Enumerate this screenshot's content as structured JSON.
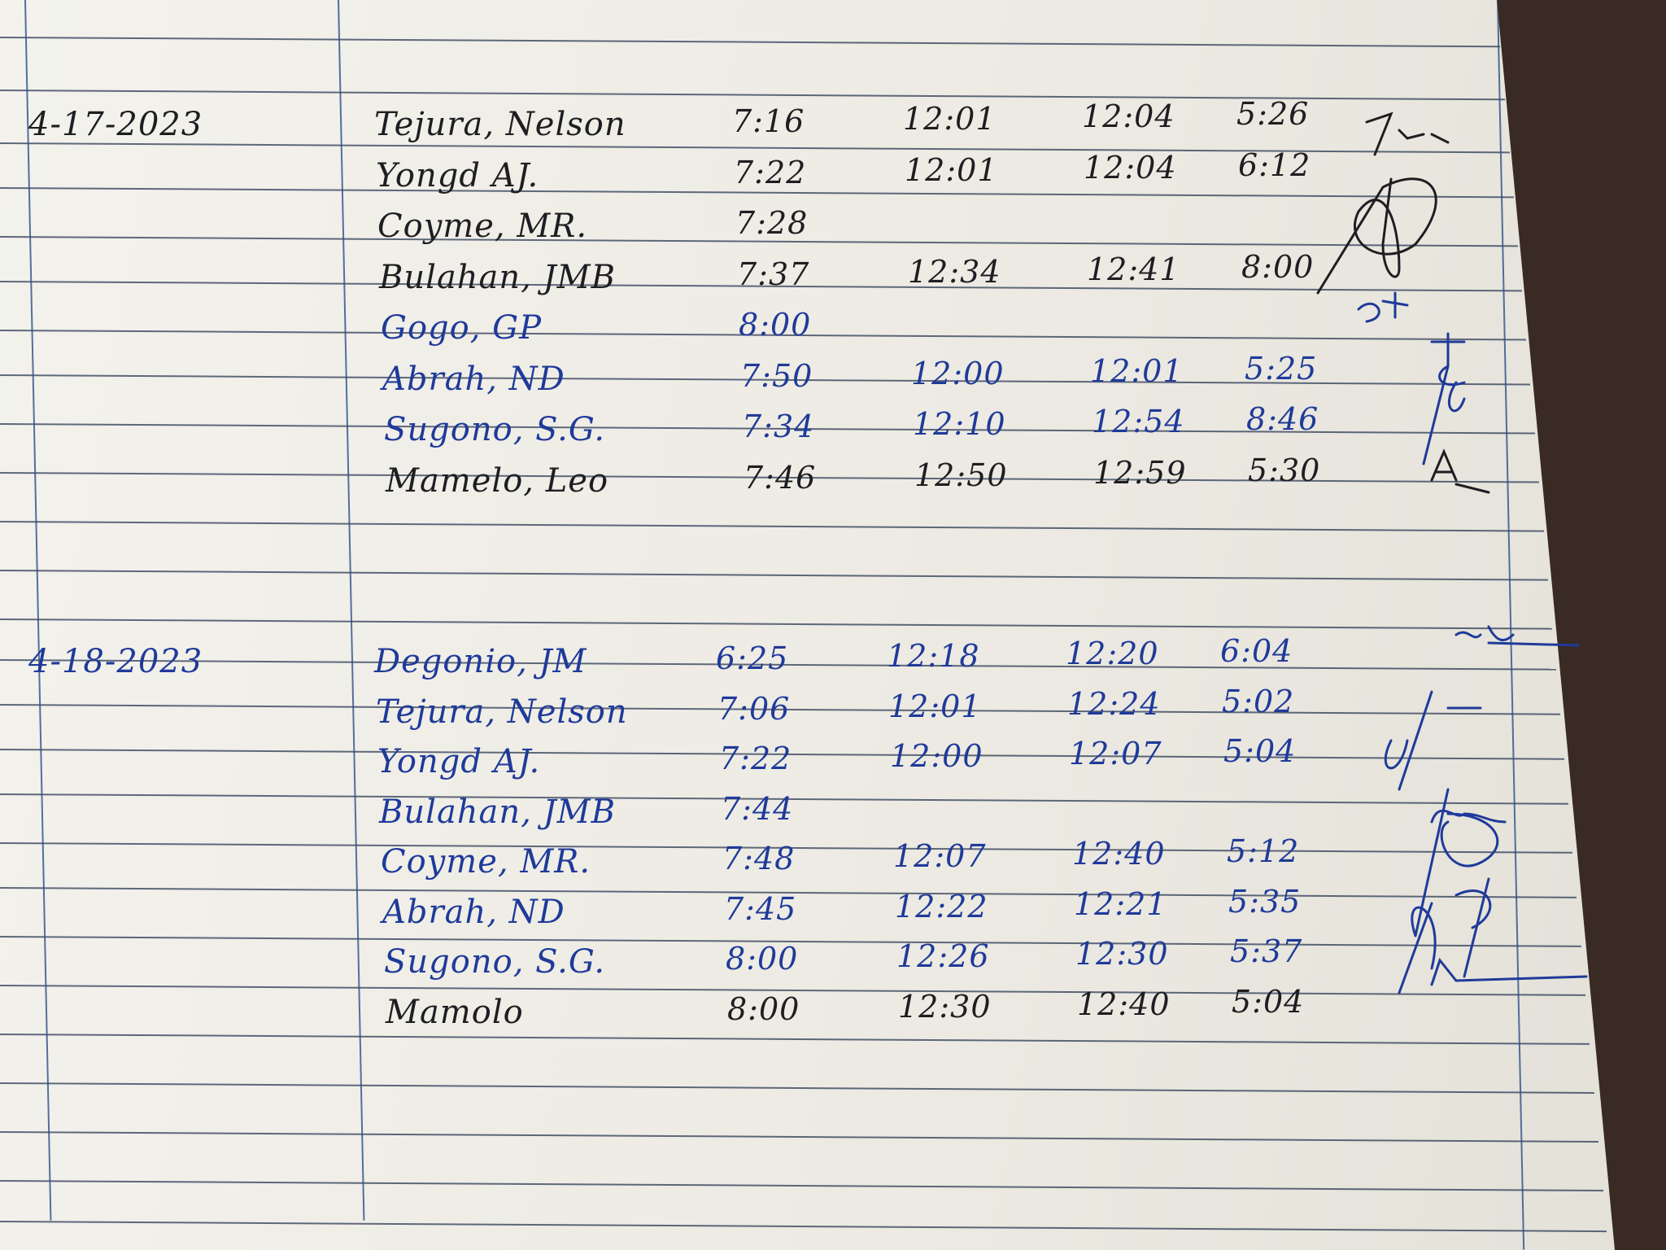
{
  "colors": {
    "ink_blue": "#1f3a9a",
    "ink_black": "#1e1e22",
    "paper": "#f0efe8",
    "rule": "#2c3a55"
  },
  "sections": [
    {
      "date": "4-17-2023",
      "date_ink": "black",
      "rows": [
        {
          "name": "Tejura, Nelson",
          "in_am": "7:16",
          "out_am": "12:01",
          "in_pm": "12:04",
          "out_pm": "5:26",
          "ink": "black"
        },
        {
          "name": "Yongd AJ.",
          "in_am": "7:22",
          "out_am": "12:01",
          "in_pm": "12:04",
          "out_pm": "6:12",
          "ink": "black"
        },
        {
          "name": "Coyme, MR.",
          "in_am": "7:28",
          "out_am": "",
          "in_pm": "",
          "out_pm": "",
          "ink": "black"
        },
        {
          "name": "Bulahan, JMB",
          "in_am": "7:37",
          "out_am": "12:34",
          "in_pm": "12:41",
          "out_pm": "8:00",
          "ink": "black"
        },
        {
          "name": "Gogo, GP",
          "in_am": "8:00",
          "out_am": "",
          "in_pm": "",
          "out_pm": "",
          "ink": "blue"
        },
        {
          "name": "Abrah, ND",
          "in_am": "7:50",
          "out_am": "12:00",
          "in_pm": "12:01",
          "out_pm": "5:25",
          "ink": "blue"
        },
        {
          "name": "Sugono, S.G.",
          "in_am": "7:34",
          "out_am": "12:10",
          "in_pm": "12:54",
          "out_pm": "8:46",
          "ink": "blue"
        },
        {
          "name": "Mamelo, Leo",
          "in_am": "7:46",
          "out_am": "12:50",
          "in_pm": "12:59",
          "out_pm": "5:30",
          "ink": "black"
        }
      ]
    },
    {
      "date": "4-18-2023",
      "date_ink": "blue",
      "rows": [
        {
          "name": "Degonio, JM",
          "in_am": "6:25",
          "out_am": "12:18",
          "in_pm": "12:20",
          "out_pm": "6:04",
          "ink": "blue"
        },
        {
          "name": "Tejura, Nelson",
          "in_am": "7:06",
          "out_am": "12:01",
          "in_pm": "12:24",
          "out_pm": "5:02",
          "ink": "blue"
        },
        {
          "name": "Yongd AJ.",
          "in_am": "7:22",
          "out_am": "12:00",
          "in_pm": "12:07",
          "out_pm": "5:04",
          "ink": "blue"
        },
        {
          "name": "Bulahan, JMB",
          "in_am": "7:44",
          "out_am": "",
          "in_pm": "",
          "out_pm": "",
          "ink": "blue"
        },
        {
          "name": "Coyme, MR.",
          "in_am": "7:48",
          "out_am": "12:07",
          "in_pm": "12:40",
          "out_pm": "5:12",
          "ink": "blue"
        },
        {
          "name": "Abrah, ND",
          "in_am": "7:45",
          "out_am": "12:22",
          "in_pm": "12:21",
          "out_pm": "5:35",
          "ink": "blue"
        },
        {
          "name": "Sugono, S.G.",
          "in_am": "8:00",
          "out_am": "12:26",
          "in_pm": "12:30",
          "out_pm": "5:37",
          "ink": "blue"
        },
        {
          "name": "Mamolo",
          "in_am": "8:00",
          "out_am": "12:30",
          "in_pm": "12:40",
          "out_pm": "5:04",
          "ink": "black"
        }
      ]
    }
  ]
}
